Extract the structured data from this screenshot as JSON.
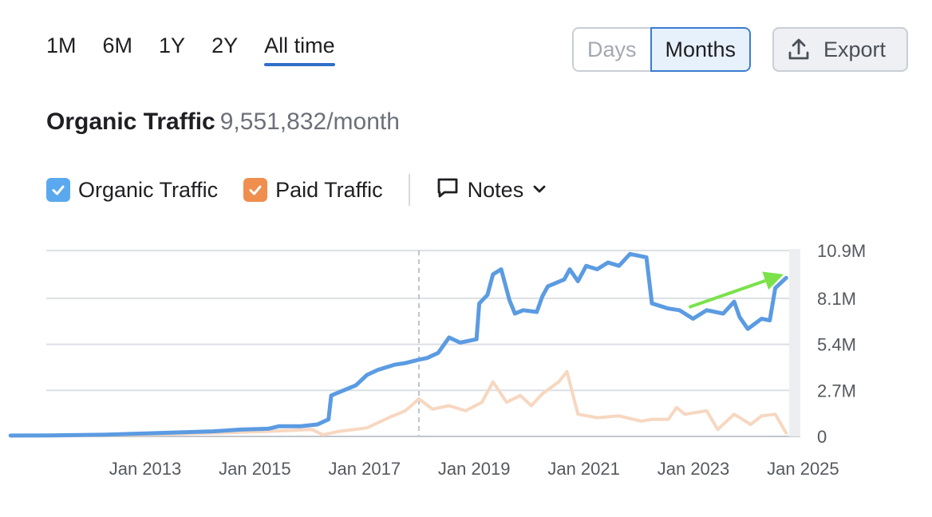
{
  "range_tabs": [
    "1M",
    "6M",
    "1Y",
    "2Y",
    "All time"
  ],
  "active_range": "All time",
  "granularity": {
    "days_label": "Days",
    "months_label": "Months",
    "selected": "Months"
  },
  "export_label": "Export",
  "heading": {
    "metric": "Organic Traffic",
    "value": "9,551,832/month"
  },
  "legend": {
    "organic_label": "Organic Traffic",
    "paid_label": "Paid Traffic",
    "notes_label": "Notes"
  },
  "colors": {
    "organic": "#5b9be2",
    "organic_checkbox": "#5aa9ee",
    "paid": "#f7d7c0",
    "paid_checkbox": "#ef8e4e",
    "grid": "#dcdfe4",
    "arrow": "#7be24a",
    "accent": "#2f6fc7"
  },
  "icons": {
    "export": "upload-icon",
    "notes": "comment-icon",
    "chevron": "chevron-down-icon",
    "check": "check-icon"
  },
  "chart_data": {
    "type": "line",
    "x_range": [
      2011.3,
      2025.0
    ],
    "ylim": [
      0,
      10.9
    ],
    "y_unit": "M",
    "y_ticks": [
      {
        "value": 10.9,
        "label": "10.9M"
      },
      {
        "value": 8.1,
        "label": "8.1M"
      },
      {
        "value": 5.4,
        "label": "5.4M"
      },
      {
        "value": 2.7,
        "label": "2.7M"
      },
      {
        "value": 0,
        "label": "0"
      }
    ],
    "x_ticks": [
      {
        "value": 2013,
        "label": "Jan 2013"
      },
      {
        "value": 2015,
        "label": "Jan 2015"
      },
      {
        "value": 2017,
        "label": "Jan 2017"
      },
      {
        "value": 2019,
        "label": "Jan 2019"
      },
      {
        "value": 2021,
        "label": "Jan 2021"
      },
      {
        "value": 2023,
        "label": "Jan 2023"
      },
      {
        "value": 2025,
        "label": "Jan 2025"
      }
    ],
    "grid": true,
    "annotation_line_x": 2018.75,
    "series": [
      {
        "name": "Organic Traffic",
        "points": [
          [
            2011.3,
            0.05
          ],
          [
            2012.0,
            0.06
          ],
          [
            2013.0,
            0.1
          ],
          [
            2014.0,
            0.2
          ],
          [
            2015.0,
            0.3
          ],
          [
            2015.5,
            0.4
          ],
          [
            2016.0,
            0.45
          ],
          [
            2016.2,
            0.6
          ],
          [
            2016.6,
            0.6
          ],
          [
            2016.9,
            0.7
          ],
          [
            2017.1,
            1.0
          ],
          [
            2017.15,
            2.4
          ],
          [
            2017.3,
            2.6
          ],
          [
            2017.6,
            3.0
          ],
          [
            2017.8,
            3.6
          ],
          [
            2018.0,
            3.9
          ],
          [
            2018.3,
            4.2
          ],
          [
            2018.5,
            4.3
          ],
          [
            2018.75,
            4.5
          ],
          [
            2018.9,
            4.6
          ],
          [
            2019.1,
            4.9
          ],
          [
            2019.3,
            5.8
          ],
          [
            2019.5,
            5.5
          ],
          [
            2019.8,
            5.7
          ],
          [
            2019.85,
            7.8
          ],
          [
            2020.0,
            8.3
          ],
          [
            2020.1,
            9.5
          ],
          [
            2020.25,
            9.8
          ],
          [
            2020.4,
            8.0
          ],
          [
            2020.5,
            7.2
          ],
          [
            2020.65,
            7.4
          ],
          [
            2020.9,
            7.3
          ],
          [
            2021.0,
            8.2
          ],
          [
            2021.1,
            8.8
          ],
          [
            2021.4,
            9.2
          ],
          [
            2021.5,
            9.8
          ],
          [
            2021.65,
            9.1
          ],
          [
            2021.8,
            10.0
          ],
          [
            2022.0,
            9.8
          ],
          [
            2022.2,
            10.2
          ],
          [
            2022.4,
            10.0
          ],
          [
            2022.6,
            10.7
          ],
          [
            2022.9,
            10.5
          ],
          [
            2023.0,
            7.8
          ],
          [
            2023.3,
            7.5
          ],
          [
            2023.5,
            7.4
          ],
          [
            2023.75,
            6.9
          ],
          [
            2024.0,
            7.4
          ],
          [
            2024.3,
            7.2
          ],
          [
            2024.5,
            7.9
          ],
          [
            2024.6,
            7.0
          ],
          [
            2024.75,
            6.3
          ],
          [
            2025.0,
            6.9
          ],
          [
            2025.15,
            6.8
          ],
          [
            2025.25,
            8.7
          ],
          [
            2025.45,
            9.3
          ]
        ]
      },
      {
        "name": "Paid Traffic",
        "points": [
          [
            2011.3,
            0.02
          ],
          [
            2013.0,
            0.05
          ],
          [
            2015.0,
            0.2
          ],
          [
            2016.0,
            0.3
          ],
          [
            2016.8,
            0.4
          ],
          [
            2017.0,
            0.1
          ],
          [
            2017.3,
            0.3
          ],
          [
            2017.8,
            0.5
          ],
          [
            2018.2,
            1.1
          ],
          [
            2018.5,
            1.5
          ],
          [
            2018.75,
            2.2
          ],
          [
            2019.0,
            1.6
          ],
          [
            2019.3,
            1.8
          ],
          [
            2019.6,
            1.5
          ],
          [
            2019.9,
            2.0
          ],
          [
            2020.1,
            3.2
          ],
          [
            2020.35,
            2.0
          ],
          [
            2020.6,
            2.4
          ],
          [
            2020.8,
            1.8
          ],
          [
            2021.0,
            2.5
          ],
          [
            2021.3,
            3.2
          ],
          [
            2021.45,
            3.8
          ],
          [
            2021.65,
            1.3
          ],
          [
            2022.0,
            1.1
          ],
          [
            2022.4,
            1.2
          ],
          [
            2022.8,
            0.9
          ],
          [
            2023.0,
            1.0
          ],
          [
            2023.3,
            1.0
          ],
          [
            2023.45,
            1.7
          ],
          [
            2023.6,
            1.3
          ],
          [
            2024.0,
            1.5
          ],
          [
            2024.2,
            0.4
          ],
          [
            2024.5,
            1.3
          ],
          [
            2024.8,
            0.7
          ],
          [
            2025.0,
            1.2
          ],
          [
            2025.25,
            1.3
          ],
          [
            2025.45,
            0.2
          ]
        ]
      }
    ],
    "trend_arrow": {
      "from": [
        2023.7,
        7.6
      ],
      "to": [
        2025.4,
        9.5
      ]
    }
  }
}
